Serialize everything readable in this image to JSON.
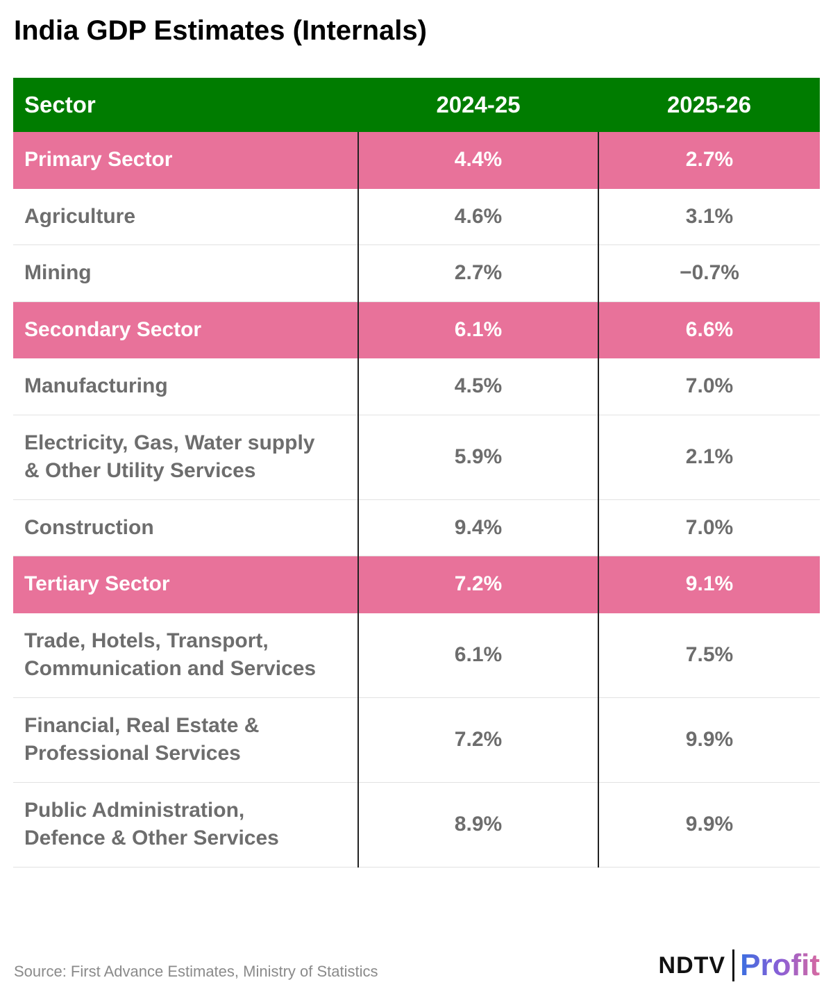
{
  "title": "India GDP Estimates (Internals)",
  "table": {
    "columns": [
      "Sector",
      "2024-25",
      "2025-26"
    ],
    "rows": [
      {
        "cells": [
          "Primary Sector",
          "4.4%",
          "2.7%"
        ],
        "highlight": true
      },
      {
        "cells": [
          "Agriculture",
          "4.6%",
          "3.1%"
        ],
        "highlight": false
      },
      {
        "cells": [
          "Mining",
          "2.7%",
          "−0.7%"
        ],
        "highlight": false
      },
      {
        "cells": [
          "Secondary Sector",
          "6.1%",
          "6.6%"
        ],
        "highlight": true
      },
      {
        "cells": [
          "Manufacturing",
          "4.5%",
          "7.0%"
        ],
        "highlight": false
      },
      {
        "cells": [
          "Electricity, Gas, Water supply & Other Utility Services",
          "5.9%",
          "2.1%"
        ],
        "highlight": false
      },
      {
        "cells": [
          "Construction",
          "9.4%",
          "7.0%"
        ],
        "highlight": false
      },
      {
        "cells": [
          "Tertiary Sector",
          "7.2%",
          "9.1%"
        ],
        "highlight": true
      },
      {
        "cells": [
          "Trade, Hotels, Transport, Communication and Services",
          "6.1%",
          "7.5%"
        ],
        "highlight": false
      },
      {
        "cells": [
          "Financial, Real Estate & Professional Services",
          "7.2%",
          "9.9%"
        ],
        "highlight": false
      },
      {
        "cells": [
          "Public Administration, Defence & Other Services",
          "8.9%",
          "9.9%"
        ],
        "highlight": false
      }
    ]
  },
  "source": "Source: First Advance Estimates, Ministry of Statistics",
  "logo": {
    "brand": "NDTV",
    "product": "Profit"
  }
}
